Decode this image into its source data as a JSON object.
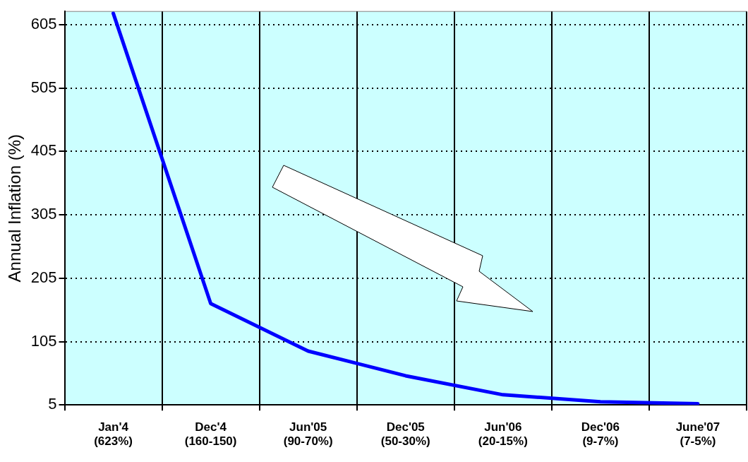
{
  "chart_data": {
    "type": "line",
    "ylabel": "Annual Inflation (%)",
    "categories": [
      "Jan'4\n(623%)",
      "Dec'4\n(160-150)",
      "Jun'05\n(90-70%)",
      "Dec'05\n(50-30%)",
      "Jun'06\n(20-15%)",
      "Dec'06\n(9-7%)",
      "June'07\n(7-5%)"
    ],
    "series": [
      {
        "color": "#0000ff",
        "values": [
          623,
          165,
          90,
          51,
          21,
          10,
          7
        ]
      }
    ],
    "ylim": [
      5,
      626
    ],
    "yticks": [
      5,
      105,
      205,
      305,
      405,
      505,
      605
    ],
    "grid": true,
    "legend": false,
    "marker": "none",
    "line_style": "solid"
  }
}
